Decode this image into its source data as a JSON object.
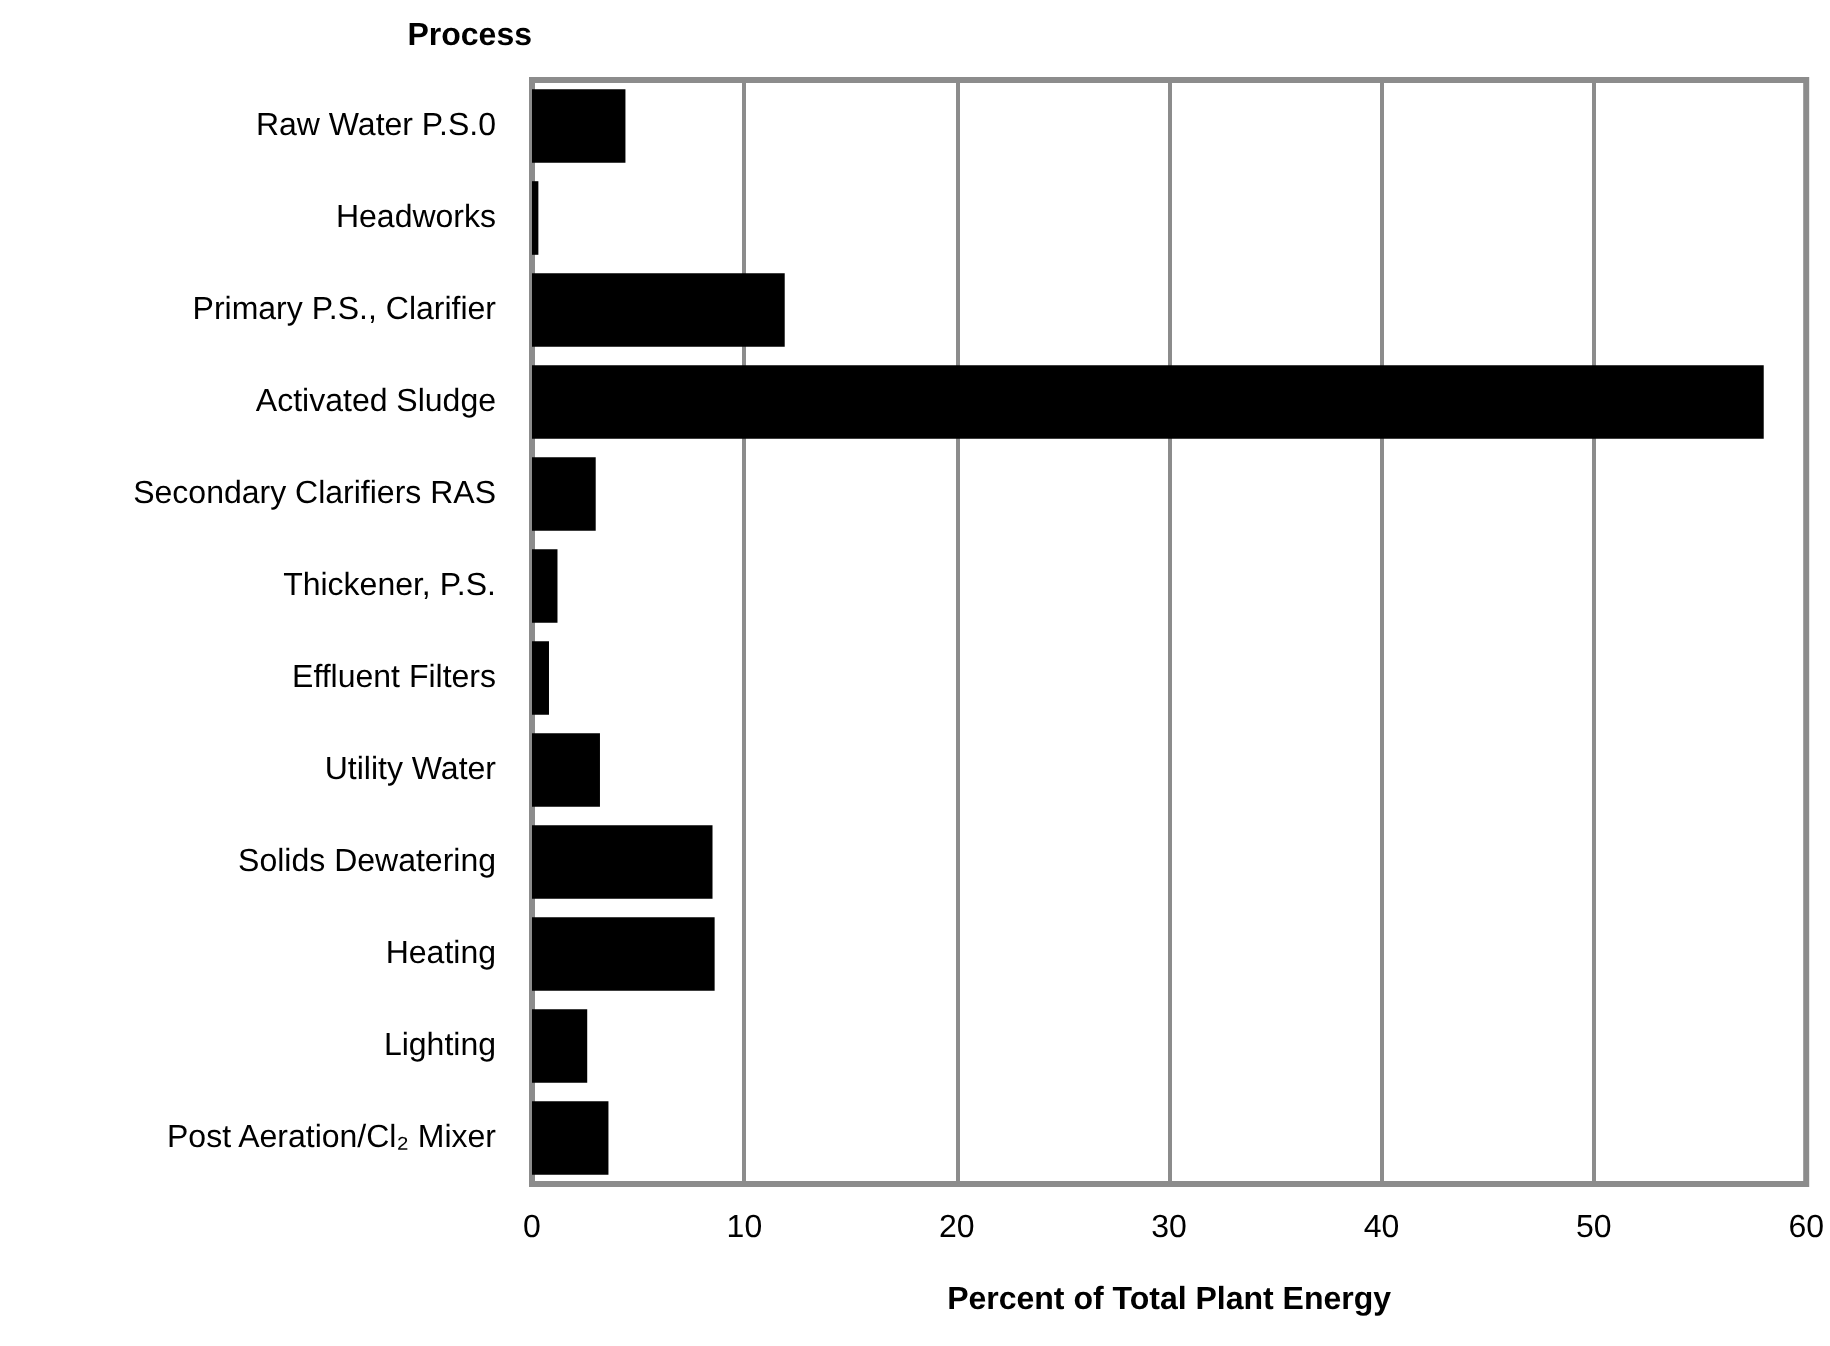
{
  "chart_data": {
    "type": "bar",
    "orientation": "horizontal",
    "xlabel": "Percent of Total Plant Energy",
    "ylabel": "Process",
    "categories": [
      "Raw Water P.S.0",
      "Headworks",
      "Primary P.S., Clarifier",
      "Activated Sludge",
      "Secondary Clarifiers RAS",
      "Thickener, P.S.",
      "Effluent Filters",
      "Utility Water",
      "Solids Dewatering",
      "Heating",
      "Lighting",
      "Post Aeration/Cl₂ Mixer"
    ],
    "values": [
      4.4,
      0.3,
      11.9,
      58.0,
      3.0,
      1.2,
      0.8,
      3.2,
      8.5,
      8.6,
      2.6,
      3.6
    ],
    "color": "#000000",
    "xlim": [
      0,
      60
    ],
    "xticks": [
      0,
      10,
      20,
      30,
      40,
      50,
      60
    ],
    "grid": "x"
  }
}
